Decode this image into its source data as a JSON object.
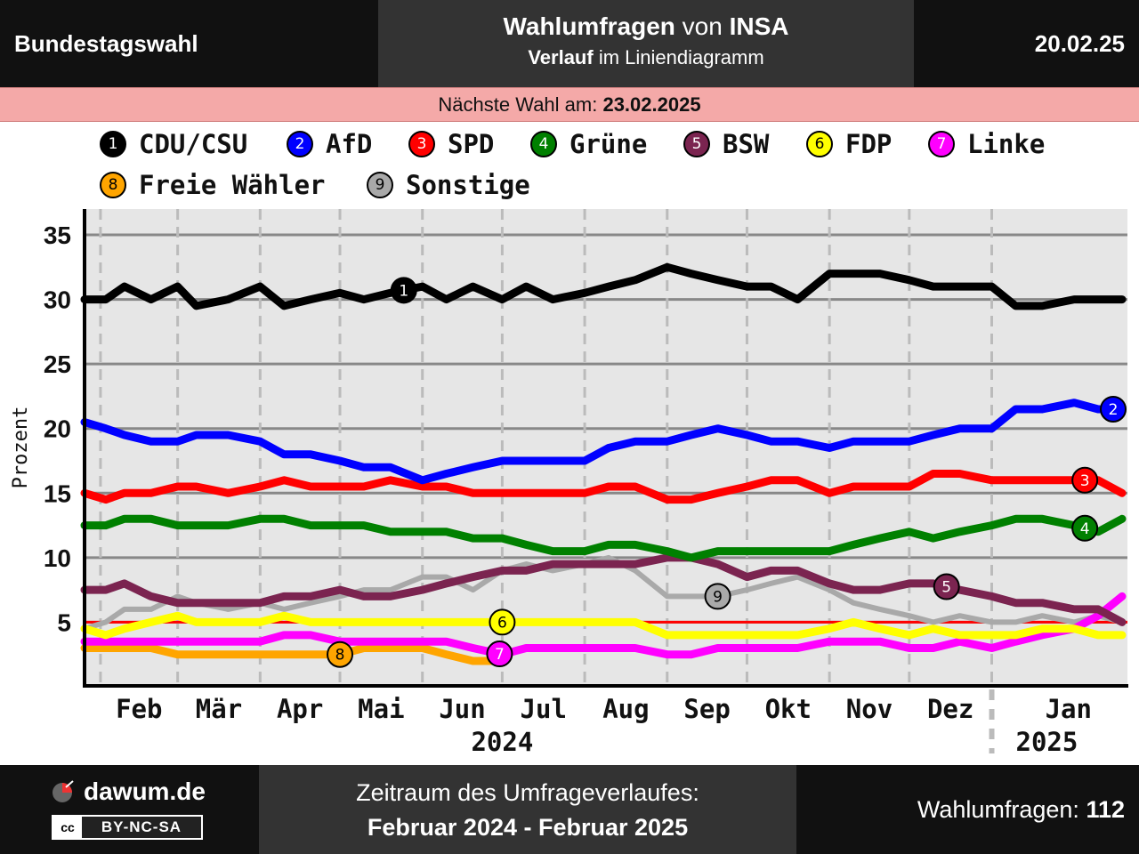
{
  "header": {
    "left": "Bundestagswahl",
    "title_pre": "Wahlumfragen",
    "title_mid": " von ",
    "title_inst": "INSA",
    "sub_bold": "Verlauf",
    "sub_rest": " im Liniendiagramm",
    "date": "20.02.25"
  },
  "next_election": {
    "label": "Nächste Wahl am: ",
    "date": "23.02.2025"
  },
  "legend": [
    {
      "num": "1",
      "name": "CDU/CSU",
      "color": "#000000",
      "text": "#ffffff"
    },
    {
      "num": "2",
      "name": "AfD",
      "color": "#0000ff",
      "text": "#ffffff"
    },
    {
      "num": "3",
      "name": "SPD",
      "color": "#ff0000",
      "text": "#ffffff"
    },
    {
      "num": "4",
      "name": "Grüne",
      "color": "#008000",
      "text": "#ffffff"
    },
    {
      "num": "5",
      "name": "BSW",
      "color": "#7b2450",
      "text": "#ffffff"
    },
    {
      "num": "6",
      "name": "FDP",
      "color": "#ffff00",
      "text": "#000000"
    },
    {
      "num": "7",
      "name": "Linke",
      "color": "#ff00ff",
      "text": "#ffffff"
    },
    {
      "num": "8",
      "name": "Freie Wähler",
      "color": "#ffa500",
      "text": "#000000"
    },
    {
      "num": "9",
      "name": "Sonstige",
      "color": "#a9a9a9",
      "text": "#000000"
    }
  ],
  "chart_data": {
    "type": "line",
    "ylabel": "Prozent",
    "ylim": [
      0,
      37
    ],
    "yticks": [
      5,
      10,
      15,
      20,
      25,
      30,
      35
    ],
    "grid": true,
    "threshold": 5,
    "threshold_color": "#ff0000",
    "xlim": [
      "2024-01-26",
      "2025-02-21"
    ],
    "month_ticks": [
      {
        "date": "2024-02-01",
        "label": "Feb"
      },
      {
        "date": "2024-03-01",
        "label": "Mär"
      },
      {
        "date": "2024-04-01",
        "label": "Apr"
      },
      {
        "date": "2024-05-01",
        "label": "Mai"
      },
      {
        "date": "2024-06-01",
        "label": "Jun"
      },
      {
        "date": "2024-07-01",
        "label": "Jul"
      },
      {
        "date": "2024-08-01",
        "label": "Aug"
      },
      {
        "date": "2024-09-01",
        "label": "Sep"
      },
      {
        "date": "2024-10-01",
        "label": "Okt"
      },
      {
        "date": "2024-11-01",
        "label": "Nov"
      },
      {
        "date": "2024-12-01",
        "label": "Dez"
      },
      {
        "date": "2025-01-01",
        "label": "Jan"
      }
    ],
    "year_labels": [
      {
        "date": "2024-07-01",
        "label": "2024"
      },
      {
        "date": "2025-01-10",
        "label": "2025"
      }
    ],
    "year_boundary": "2025-01-01",
    "series": [
      {
        "name": "CDU/CSU",
        "num": "1",
        "color": "#000000",
        "x": [
          "2024-01-26",
          "2024-02-03",
          "2024-02-10",
          "2024-02-20",
          "2024-03-01",
          "2024-03-08",
          "2024-03-20",
          "2024-04-01",
          "2024-04-10",
          "2024-04-20",
          "2024-05-01",
          "2024-05-10",
          "2024-05-20",
          "2024-06-01",
          "2024-06-10",
          "2024-06-20",
          "2024-07-01",
          "2024-07-10",
          "2024-07-20",
          "2024-08-01",
          "2024-08-10",
          "2024-08-20",
          "2024-09-01",
          "2024-09-10",
          "2024-09-20",
          "2024-10-01",
          "2024-10-10",
          "2024-10-20",
          "2024-11-01",
          "2024-11-10",
          "2024-11-20",
          "2024-12-01",
          "2024-12-10",
          "2024-12-20",
          "2025-01-01",
          "2025-01-10",
          "2025-01-20",
          "2025-02-01",
          "2025-02-10",
          "2025-02-19"
        ],
        "y": [
          30,
          30,
          31,
          30,
          31,
          29.5,
          30,
          31,
          29.5,
          30,
          30.5,
          30,
          30.5,
          31,
          30,
          31,
          30,
          31,
          30,
          30.5,
          31,
          31.5,
          32.5,
          32,
          31.5,
          31,
          31,
          30,
          32,
          32,
          32,
          31.5,
          31,
          31,
          31,
          29.5,
          29.5,
          30,
          30,
          30
        ],
        "marker_date": "2024-05-25"
      },
      {
        "name": "AfD",
        "num": "2",
        "color": "#0000ff",
        "x": [
          "2024-01-26",
          "2024-02-03",
          "2024-02-10",
          "2024-02-20",
          "2024-03-01",
          "2024-03-08",
          "2024-03-20",
          "2024-04-01",
          "2024-04-10",
          "2024-04-20",
          "2024-05-01",
          "2024-05-10",
          "2024-05-20",
          "2024-06-01",
          "2024-06-10",
          "2024-06-20",
          "2024-07-01",
          "2024-07-10",
          "2024-07-20",
          "2024-08-01",
          "2024-08-10",
          "2024-08-20",
          "2024-09-01",
          "2024-09-10",
          "2024-09-20",
          "2024-10-01",
          "2024-10-10",
          "2024-10-20",
          "2024-11-01",
          "2024-11-10",
          "2024-11-20",
          "2024-12-01",
          "2024-12-10",
          "2024-12-20",
          "2025-01-01",
          "2025-01-10",
          "2025-01-20",
          "2025-02-01",
          "2025-02-10",
          "2025-02-19"
        ],
        "y": [
          20.5,
          20,
          19.5,
          19,
          19,
          19.5,
          19.5,
          19,
          18,
          18,
          17.5,
          17,
          17,
          16,
          16.5,
          17,
          17.5,
          17.5,
          17.5,
          17.5,
          18.5,
          19,
          19,
          19.5,
          20,
          19.5,
          19,
          19,
          18.5,
          19,
          19,
          19,
          19.5,
          20,
          20,
          21.5,
          21.5,
          22,
          21.5,
          21.5
        ],
        "marker_date": "2025-02-19"
      },
      {
        "name": "SPD",
        "num": "3",
        "color": "#ff0000",
        "x": [
          "2024-01-26",
          "2024-02-03",
          "2024-02-10",
          "2024-02-20",
          "2024-03-01",
          "2024-03-08",
          "2024-03-20",
          "2024-04-01",
          "2024-04-10",
          "2024-04-20",
          "2024-05-01",
          "2024-05-10",
          "2024-05-20",
          "2024-06-01",
          "2024-06-10",
          "2024-06-20",
          "2024-07-01",
          "2024-07-10",
          "2024-07-20",
          "2024-08-01",
          "2024-08-10",
          "2024-08-20",
          "2024-09-01",
          "2024-09-10",
          "2024-09-20",
          "2024-10-01",
          "2024-10-10",
          "2024-10-20",
          "2024-11-01",
          "2024-11-10",
          "2024-11-20",
          "2024-12-01",
          "2024-12-10",
          "2024-12-20",
          "2025-01-01",
          "2025-01-10",
          "2025-01-20",
          "2025-02-01",
          "2025-02-10",
          "2025-02-19"
        ],
        "y": [
          15,
          14.5,
          15,
          15,
          15.5,
          15.5,
          15,
          15.5,
          16,
          15.5,
          15.5,
          15.5,
          16,
          15.5,
          15.5,
          15,
          15,
          15,
          15,
          15,
          15.5,
          15.5,
          14.5,
          14.5,
          15,
          15.5,
          16,
          16,
          15,
          15.5,
          15.5,
          15.5,
          16.5,
          16.5,
          16,
          16,
          16,
          16,
          16,
          15
        ],
        "marker_date": "2025-02-05"
      },
      {
        "name": "Grüne",
        "num": "4",
        "color": "#008000",
        "x": [
          "2024-01-26",
          "2024-02-03",
          "2024-02-10",
          "2024-02-20",
          "2024-03-01",
          "2024-03-08",
          "2024-03-20",
          "2024-04-01",
          "2024-04-10",
          "2024-04-20",
          "2024-05-01",
          "2024-05-10",
          "2024-05-20",
          "2024-06-01",
          "2024-06-10",
          "2024-06-20",
          "2024-07-01",
          "2024-07-10",
          "2024-07-20",
          "2024-08-01",
          "2024-08-10",
          "2024-08-20",
          "2024-09-01",
          "2024-09-10",
          "2024-09-20",
          "2024-10-01",
          "2024-10-10",
          "2024-10-20",
          "2024-11-01",
          "2024-11-10",
          "2024-11-20",
          "2024-12-01",
          "2024-12-10",
          "2024-12-20",
          "2025-01-01",
          "2025-01-10",
          "2025-01-20",
          "2025-02-01",
          "2025-02-10",
          "2025-02-19"
        ],
        "y": [
          12.5,
          12.5,
          13,
          13,
          12.5,
          12.5,
          12.5,
          13,
          13,
          12.5,
          12.5,
          12.5,
          12,
          12,
          12,
          11.5,
          11.5,
          11,
          10.5,
          10.5,
          11,
          11,
          10.5,
          10,
          10.5,
          10.5,
          10.5,
          10.5,
          10.5,
          11,
          11.5,
          12,
          11.5,
          12,
          12.5,
          13,
          13,
          12.5,
          12,
          13
        ],
        "marker_date": "2025-02-05"
      },
      {
        "name": "BSW",
        "num": "5",
        "color": "#7b2450",
        "x": [
          "2024-01-26",
          "2024-02-03",
          "2024-02-10",
          "2024-02-20",
          "2024-03-01",
          "2024-03-08",
          "2024-03-20",
          "2024-04-01",
          "2024-04-10",
          "2024-04-20",
          "2024-05-01",
          "2024-05-10",
          "2024-05-20",
          "2024-06-01",
          "2024-06-10",
          "2024-06-20",
          "2024-07-01",
          "2024-07-10",
          "2024-07-20",
          "2024-08-01",
          "2024-08-10",
          "2024-08-20",
          "2024-09-01",
          "2024-09-10",
          "2024-09-20",
          "2024-10-01",
          "2024-10-10",
          "2024-10-20",
          "2024-11-01",
          "2024-11-10",
          "2024-11-20",
          "2024-12-01",
          "2024-12-10",
          "2024-12-20",
          "2025-01-01",
          "2025-01-10",
          "2025-01-20",
          "2025-02-01",
          "2025-02-10",
          "2025-02-19"
        ],
        "y": [
          7.5,
          7.5,
          8,
          7,
          6.5,
          6.5,
          6.5,
          6.5,
          7,
          7,
          7.5,
          7,
          7,
          7.5,
          8,
          8.5,
          9,
          9,
          9.5,
          9.5,
          9.5,
          9.5,
          10,
          10,
          9.5,
          8.5,
          9,
          9,
          8,
          7.5,
          7.5,
          8,
          8,
          7.5,
          7,
          6.5,
          6.5,
          6,
          6,
          5
        ],
        "marker_date": "2024-12-15"
      },
      {
        "name": "FDP",
        "num": "6",
        "color": "#ffff00",
        "x": [
          "2024-01-26",
          "2024-02-03",
          "2024-02-10",
          "2024-02-20",
          "2024-03-01",
          "2024-03-08",
          "2024-03-20",
          "2024-04-01",
          "2024-04-10",
          "2024-04-20",
          "2024-05-01",
          "2024-05-10",
          "2024-05-20",
          "2024-06-01",
          "2024-06-10",
          "2024-06-20",
          "2024-07-01",
          "2024-07-10",
          "2024-07-20",
          "2024-08-01",
          "2024-08-10",
          "2024-08-20",
          "2024-09-01",
          "2024-09-10",
          "2024-09-20",
          "2024-10-01",
          "2024-10-10",
          "2024-10-20",
          "2024-11-01",
          "2024-11-10",
          "2024-11-20",
          "2024-12-01",
          "2024-12-10",
          "2024-12-20",
          "2025-01-01",
          "2025-01-10",
          "2025-01-20",
          "2025-02-01",
          "2025-02-10",
          "2025-02-19"
        ],
        "y": [
          4.5,
          4,
          4.5,
          5,
          5.5,
          5,
          5,
          5,
          5.5,
          5,
          5,
          5,
          5,
          5,
          5,
          5,
          5,
          5,
          5,
          5,
          5,
          5,
          4,
          4,
          4,
          4,
          4,
          4,
          4.5,
          5,
          4.5,
          4,
          4.5,
          4,
          4,
          4,
          4.5,
          4.5,
          4,
          4
        ],
        "marker_date": "2024-07-01"
      },
      {
        "name": "Linke",
        "num": "7",
        "color": "#ff00ff",
        "x": [
          "2024-01-26",
          "2024-02-03",
          "2024-02-10",
          "2024-02-20",
          "2024-03-01",
          "2024-03-08",
          "2024-03-20",
          "2024-04-01",
          "2024-04-10",
          "2024-04-20",
          "2024-05-01",
          "2024-05-10",
          "2024-05-20",
          "2024-06-01",
          "2024-06-10",
          "2024-06-20",
          "2024-07-01",
          "2024-07-10",
          "2024-07-20",
          "2024-08-01",
          "2024-08-10",
          "2024-08-20",
          "2024-09-01",
          "2024-09-10",
          "2024-09-20",
          "2024-10-01",
          "2024-10-10",
          "2024-10-20",
          "2024-11-01",
          "2024-11-10",
          "2024-11-20",
          "2024-12-01",
          "2024-12-10",
          "2024-12-20",
          "2025-01-01",
          "2025-01-10",
          "2025-01-20",
          "2025-02-01",
          "2025-02-10",
          "2025-02-19"
        ],
        "y": [
          3.5,
          3.5,
          3.5,
          3.5,
          3.5,
          3.5,
          3.5,
          3.5,
          4,
          4,
          3.5,
          3.5,
          3.5,
          3.5,
          3.5,
          3,
          2.5,
          3,
          3,
          3,
          3,
          3,
          2.5,
          2.5,
          3,
          3,
          3,
          3,
          3.5,
          3.5,
          3.5,
          3,
          3,
          3.5,
          3,
          3.5,
          4,
          4.5,
          5.5,
          7
        ],
        "marker_date": "2024-06-30"
      },
      {
        "name": "Freie Wähler",
        "num": "8",
        "color": "#ffa500",
        "x": [
          "2024-01-26",
          "2024-02-03",
          "2024-02-10",
          "2024-02-20",
          "2024-03-01",
          "2024-03-08",
          "2024-03-20",
          "2024-04-01",
          "2024-04-10",
          "2024-04-20",
          "2024-05-01",
          "2024-05-10",
          "2024-05-20",
          "2024-06-01",
          "2024-06-10",
          "2024-06-20",
          "2024-06-28"
        ],
        "y": [
          3,
          3,
          3,
          3,
          2.5,
          2.5,
          2.5,
          2.5,
          2.5,
          2.5,
          2.5,
          3,
          3,
          3,
          2.5,
          2,
          2
        ],
        "marker_date": "2024-05-01"
      },
      {
        "name": "Sonstige",
        "num": "9",
        "color": "#a9a9a9",
        "x": [
          "2024-01-26",
          "2024-02-03",
          "2024-02-10",
          "2024-02-20",
          "2024-03-01",
          "2024-03-08",
          "2024-03-20",
          "2024-04-01",
          "2024-04-10",
          "2024-04-20",
          "2024-05-01",
          "2024-05-10",
          "2024-05-20",
          "2024-06-01",
          "2024-06-10",
          "2024-06-20",
          "2024-07-01",
          "2024-07-10",
          "2024-07-20",
          "2024-08-01",
          "2024-08-10",
          "2024-08-20",
          "2024-09-01",
          "2024-09-10",
          "2024-09-20",
          "2024-10-01",
          "2024-10-10",
          "2024-10-20",
          "2024-11-01",
          "2024-11-10",
          "2024-11-20",
          "2024-12-01",
          "2024-12-10",
          "2024-12-20",
          "2025-01-01",
          "2025-01-10",
          "2025-01-20",
          "2025-02-01",
          "2025-02-10",
          "2025-02-19"
        ],
        "y": [
          4.5,
          5,
          6,
          6,
          7,
          6.5,
          6,
          6.5,
          6,
          6.5,
          7,
          7.5,
          7.5,
          8.5,
          8.5,
          7.5,
          9,
          9.5,
          9,
          9.5,
          10,
          9,
          7,
          7,
          7,
          7.5,
          8,
          8.5,
          7.5,
          6.5,
          6,
          5.5,
          5,
          5.5,
          5,
          5,
          5.5,
          5,
          5.5,
          5
        ],
        "marker_date": "2024-09-20"
      }
    ]
  },
  "footer": {
    "site": "dawum.de",
    "license": "BY-NC-SA",
    "cc_mark": "cc",
    "period_label": "Zeitraum des Umfrageverlaufes:",
    "period": "Februar 2024 - Februar 2025",
    "polls_label": "Wahlumfragen: ",
    "polls_count": "112"
  }
}
